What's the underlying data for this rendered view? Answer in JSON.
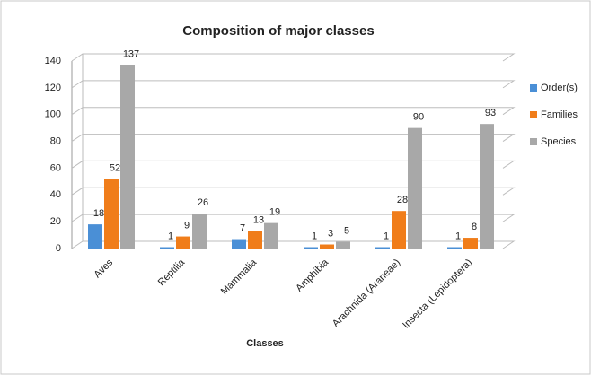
{
  "chart_data": {
    "type": "bar",
    "title": "Composition of major classes",
    "x_label": "Classes",
    "categories": [
      "Aves",
      "Reptilia",
      "Mammalia",
      "Amphibia",
      "Arachnida (Araneae)",
      "Insecta (Lepidoptera)"
    ],
    "series": [
      {
        "name": "Order(s)",
        "color": "#4a8fd6",
        "values": [
          18,
          1,
          7,
          1,
          1,
          1
        ]
      },
      {
        "name": "Families",
        "color": "#f07d1a",
        "values": [
          52,
          9,
          13,
          3,
          28,
          8
        ]
      },
      {
        "name": "Species",
        "color": "#a8a8a8",
        "values": [
          137,
          26,
          19,
          5,
          90,
          93
        ]
      }
    ],
    "ylim": [
      0,
      140
    ],
    "yticks": [
      0,
      20,
      40,
      60,
      80,
      100,
      120,
      140
    ],
    "grid": true,
    "legend": "right"
  }
}
